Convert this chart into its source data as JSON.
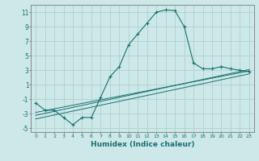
{
  "xlabel": "Humidex (Indice chaleur)",
  "ylabel": "",
  "bg_color": "#cce8e8",
  "grid_color": "#b0d0d0",
  "line_color": "#1a7070",
  "spine_color": "#888888",
  "xlim": [
    -0.5,
    23.5
  ],
  "ylim": [
    -5.5,
    12.0
  ],
  "xticks": [
    0,
    1,
    2,
    3,
    4,
    5,
    6,
    7,
    8,
    9,
    10,
    11,
    12,
    13,
    14,
    15,
    16,
    17,
    18,
    19,
    20,
    21,
    22,
    23
  ],
  "yticks": [
    -5,
    -3,
    -1,
    1,
    3,
    5,
    7,
    9,
    11
  ],
  "main_series_x": [
    0,
    1,
    2,
    3,
    4,
    5,
    6,
    7,
    8,
    9,
    10,
    11,
    12,
    13,
    14,
    15,
    16,
    17,
    18,
    19,
    20,
    21,
    22,
    23
  ],
  "main_series_y": [
    -1.5,
    -2.5,
    -2.5,
    -3.5,
    -4.5,
    -3.5,
    -3.5,
    -0.7,
    2.1,
    3.5,
    6.5,
    8.0,
    9.5,
    11.0,
    11.3,
    11.2,
    9.0,
    4.0,
    3.2,
    3.2,
    3.5,
    3.2,
    3.0,
    2.8
  ],
  "line1_x": [
    0,
    23
  ],
  "line1_y": [
    -2.8,
    2.9
  ],
  "line2_x": [
    0,
    23
  ],
  "line2_y": [
    -3.2,
    3.1
  ],
  "line3_x": [
    0,
    23
  ],
  "line3_y": [
    -3.7,
    2.5
  ]
}
